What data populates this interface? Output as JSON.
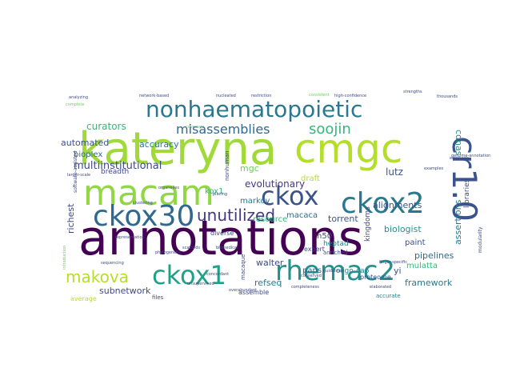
{
  "cloud": {
    "palette": {
      "dark": "#440154",
      "blue": "#3b528b",
      "teal": "#21918c",
      "green": "#35b779",
      "lime": "#b5de2b"
    },
    "words": [
      {
        "text": "annotations",
        "color": "#440154"
      },
      {
        "text": "kateryna",
        "color": "#a0da39"
      },
      {
        "text": "cmgc",
        "color": "#b5de2b"
      },
      {
        "text": "macam",
        "color": "#90d743"
      },
      {
        "text": "nonhaematopoietic",
        "color": "#2a788e"
      },
      {
        "text": "cr1.0",
        "color": "#3b528b"
      },
      {
        "text": "ckox30",
        "color": "#31688e"
      },
      {
        "text": "ckox2",
        "color": "#2a788e"
      },
      {
        "text": "ckox",
        "color": "#3b528b"
      },
      {
        "text": "rhemac2",
        "color": "#21918c"
      },
      {
        "text": "ckox1",
        "color": "#1fa187"
      },
      {
        "text": "makova",
        "color": "#b5de2b"
      },
      {
        "text": "misassemblies",
        "color": "#31688e"
      },
      {
        "text": "soojin",
        "color": "#35b779"
      },
      {
        "text": "unutilized",
        "color": "#443983"
      },
      {
        "text": "multiinstitutional",
        "color": "#3e4989"
      },
      {
        "text": "curators",
        "color": "#35b779"
      },
      {
        "text": "automated",
        "color": "#3b528b"
      },
      {
        "text": "accuracy",
        "color": "#2a788e"
      },
      {
        "text": "bioplex",
        "color": "#31688e"
      },
      {
        "text": "breadth",
        "color": "#3e4989"
      },
      {
        "text": "alignments",
        "color": "#3b528b"
      },
      {
        "text": "evolutionary",
        "color": "#443983"
      },
      {
        "text": "lutz",
        "color": "#3b528b"
      },
      {
        "text": "cdnas",
        "color": "#21918c"
      },
      {
        "text": "kox1",
        "color": "#35b779"
      },
      {
        "text": "mgc",
        "color": "#6ece58"
      },
      {
        "text": "markov",
        "color": "#2a788e"
      },
      {
        "text": "draft",
        "color": "#b5de2b"
      },
      {
        "text": "resource",
        "color": "#35b779"
      },
      {
        "text": "macaca",
        "color": "#31688e"
      },
      {
        "text": "torrent",
        "color": "#3b528b"
      },
      {
        "text": "n50",
        "color": "#3e4989"
      },
      {
        "text": "expert",
        "color": "#3e4989"
      },
      {
        "text": "heptad",
        "color": "#26828e"
      },
      {
        "text": "biologist",
        "color": "#21918c"
      },
      {
        "text": "paint",
        "color": "#3b528b"
      },
      {
        "text": "richest",
        "color": "#3e4989"
      },
      {
        "text": "diverse",
        "color": "#3e4989"
      },
      {
        "text": "walter",
        "color": "#3e4989"
      },
      {
        "text": "paps",
        "color": "#31688e"
      },
      {
        "text": "yi",
        "color": "#3b528b"
      },
      {
        "text": "refseq",
        "color": "#2a788e"
      },
      {
        "text": "pipelines",
        "color": "#31688e"
      },
      {
        "text": "mulatta",
        "color": "#35b779"
      },
      {
        "text": "framework",
        "color": "#2a788e"
      },
      {
        "text": "subnetwork",
        "color": "#3e4989"
      },
      {
        "text": "assertions",
        "color": "#2a788e"
      },
      {
        "text": "libraries",
        "color": "#3b528b"
      },
      {
        "text": "kingdoms",
        "color": "#3e4989"
      },
      {
        "text": "oligo-cap",
        "color": "#26828e"
      },
      {
        "text": "proteome",
        "color": "#3e4989"
      },
      {
        "text": "assemble",
        "color": "#3e4989"
      },
      {
        "text": "average",
        "color": "#b5de2b"
      },
      {
        "text": "files",
        "color": "#3e4989"
      },
      {
        "text": "accurate",
        "color": "#26828e"
      },
      {
        "text": "anriched",
        "color": "#3b528b"
      },
      {
        "text": "nonhuman",
        "color": "#3e4989"
      },
      {
        "text": "macaque",
        "color": "#3e4989"
      },
      {
        "text": "modularity",
        "color": "#3e4989"
      },
      {
        "text": "software-assisted",
        "color": "#3e4989"
      },
      {
        "text": "larger-scale",
        "color": "#3e4989"
      },
      {
        "text": "analyzing",
        "color": "#3e4989"
      },
      {
        "text": "sequencing",
        "color": "#3e4989"
      },
      {
        "text": "coverage",
        "color": "#6ece58"
      },
      {
        "text": "complete",
        "color": "#6ece58"
      },
      {
        "text": "emphasis",
        "color": "#3e4989"
      },
      {
        "text": "thousands",
        "color": "#3e4989"
      },
      {
        "text": "network-based",
        "color": "#3e4989"
      },
      {
        "text": "nucleated",
        "color": "#3e4989"
      },
      {
        "text": "restriction",
        "color": "#3e4989"
      },
      {
        "text": "consistent",
        "color": "#6ece58"
      },
      {
        "text": "high-confidence",
        "color": "#3e4989"
      },
      {
        "text": "strengths",
        "color": "#3e4989"
      },
      {
        "text": "representation",
        "color": "#3e4989"
      },
      {
        "text": "scaffolds",
        "color": "#3e4989"
      },
      {
        "text": "biomedical",
        "color": "#3e4989"
      },
      {
        "text": "completeness",
        "color": "#3e4989"
      },
      {
        "text": "elaborated",
        "color": "#3e4989"
      },
      {
        "text": "guidelines",
        "color": "#3e4989"
      },
      {
        "text": "conserved",
        "color": "#3e4989"
      },
      {
        "text": "placing",
        "color": "#3e4989"
      },
      {
        "text": "unsupervised",
        "color": "#3e4989"
      },
      {
        "text": "finger-specific",
        "color": "#3e4989"
      },
      {
        "text": "examples",
        "color": "#3e4989"
      },
      {
        "text": "genome-annotation",
        "color": "#3e4989"
      },
      {
        "text": "introduction",
        "color": "#6ece58"
      },
      {
        "text": "organelles",
        "color": "#3e4989"
      },
      {
        "text": "phylogenetic",
        "color": "#3e4989"
      },
      {
        "text": "clustering",
        "color": "#3e4989"
      },
      {
        "text": "overabundant",
        "color": "#3e4989"
      },
      {
        "text": "concordant",
        "color": "#3e4989"
      }
    ]
  }
}
